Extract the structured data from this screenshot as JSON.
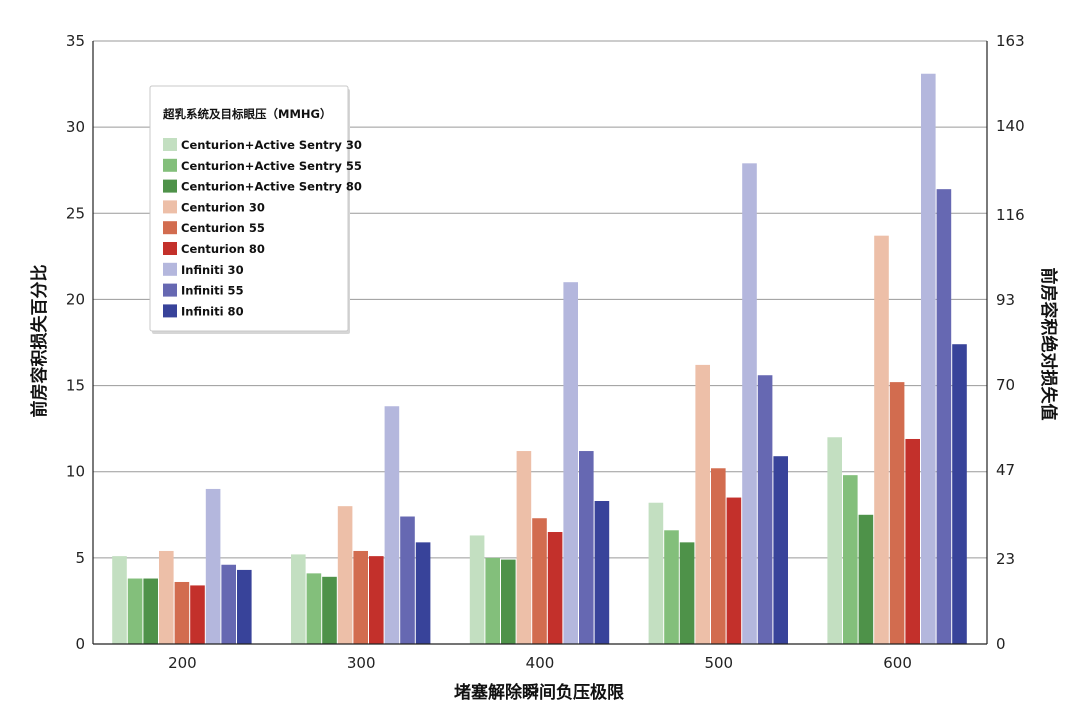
{
  "chart_data": {
    "type": "bar",
    "title": "",
    "xlabel": "堵塞解除瞬间负压极限",
    "ylabel": "前房容积损失百分比",
    "ylabel_right": "前房容积绝对损失值",
    "categories": [
      "200",
      "300",
      "400",
      "500",
      "600"
    ],
    "ylim": [
      0,
      35
    ],
    "yticks": [
      0,
      5,
      10,
      15,
      20,
      25,
      30,
      35
    ],
    "y2lim": [
      0,
      163
    ],
    "y2ticks": [
      0,
      23,
      47,
      70,
      93,
      116,
      140,
      163
    ],
    "grid": true,
    "legend": {
      "title": "超乳系统及目标眼压（MMHG）",
      "placement": "top-left"
    },
    "series": [
      {
        "name": "Centurion+Active Sentry 30",
        "color": "#c3dfc1",
        "values": [
          5.1,
          5.2,
          6.3,
          8.2,
          12.0
        ]
      },
      {
        "name": "Centurion+Active Sentry 55",
        "color": "#83bf7b",
        "values": [
          3.8,
          4.1,
          5.0,
          6.6,
          9.8
        ]
      },
      {
        "name": "Centurion+Active Sentry 80",
        "color": "#4e9249",
        "values": [
          3.8,
          3.9,
          4.9,
          5.9,
          7.5
        ]
      },
      {
        "name": "Centurion 30",
        "color": "#edbfa8",
        "values": [
          5.4,
          8.0,
          11.2,
          16.2,
          23.7
        ]
      },
      {
        "name": "Centurion 55",
        "color": "#d26c4f",
        "values": [
          3.6,
          5.4,
          7.3,
          10.2,
          15.2
        ]
      },
      {
        "name": "Centurion 80",
        "color": "#c3302b",
        "values": [
          3.4,
          5.1,
          6.5,
          8.5,
          11.9
        ]
      },
      {
        "name": "Infiniti 30",
        "color": "#b4b7dd",
        "values": [
          9.0,
          13.8,
          21.0,
          27.9,
          33.1
        ]
      },
      {
        "name": "Infiniti 55",
        "color": "#6668b2",
        "values": [
          4.6,
          7.4,
          11.2,
          15.6,
          26.4
        ]
      },
      {
        "name": "Infiniti 80",
        "color": "#38439a",
        "values": [
          4.3,
          5.9,
          8.3,
          10.9,
          17.4
        ]
      }
    ]
  }
}
